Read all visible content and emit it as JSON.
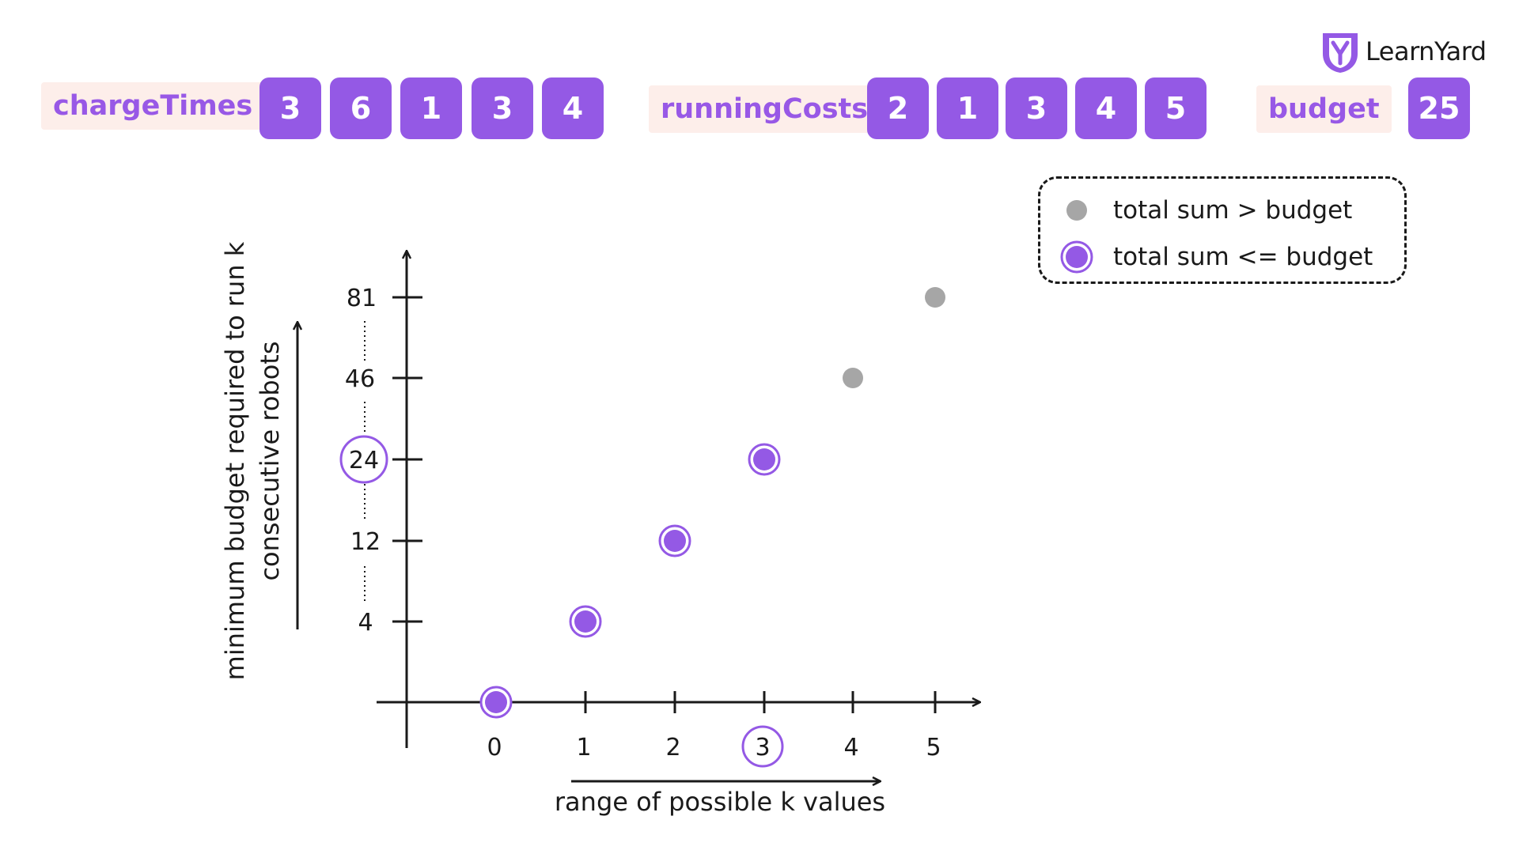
{
  "arrays": {
    "charge_times": {
      "label": "chargeTimes",
      "values": [
        "3",
        "6",
        "1",
        "3",
        "4"
      ]
    },
    "running_costs": {
      "label": "runningCosts",
      "values": [
        "2",
        "1",
        "3",
        "4",
        "5"
      ]
    },
    "budget": {
      "label": "budget",
      "value": "25"
    }
  },
  "brand": {
    "name": "LearnYard"
  },
  "legend": {
    "over_budget": "total sum > budget",
    "within_budget": "total sum <= budget"
  },
  "colors": {
    "accent": "#9459e5",
    "label_bg": "#fdeeea",
    "over_budget": "#a6a6a6",
    "axis": "#1a1a1a"
  },
  "chart_data": {
    "type": "scatter",
    "xlabel": "range of possible k values",
    "ylabel_lines": [
      "minimum budget required to run k",
      "consecutive robots"
    ],
    "x_ticks": [
      "0",
      "1",
      "2",
      "3",
      "4",
      "5"
    ],
    "y_ticks": [
      "4",
      "12",
      "24",
      "46",
      "81"
    ],
    "highlighted_x": "3",
    "highlighted_y": "24",
    "points": [
      {
        "x": 0,
        "y": 0,
        "within_budget": true
      },
      {
        "x": 1,
        "y": 4,
        "within_budget": true
      },
      {
        "x": 2,
        "y": 12,
        "within_budget": true
      },
      {
        "x": 3,
        "y": 24,
        "within_budget": true
      },
      {
        "x": 4,
        "y": 46,
        "within_budget": false
      },
      {
        "x": 5,
        "y": 81,
        "within_budget": false
      }
    ]
  }
}
